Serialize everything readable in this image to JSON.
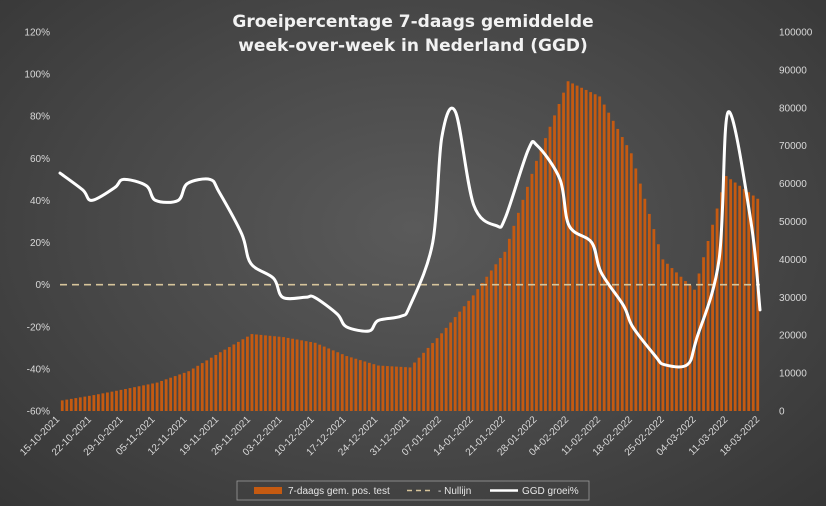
{
  "chart_data": {
    "type": "bar+line",
    "title_lines": [
      "Groeipercentage 7-daags gemiddelde",
      "week-over-week in Nederland (GGD)"
    ],
    "x_tick_labels": [
      "15-10-2021",
      "22-10-2021",
      "29-10-2021",
      "05-11-2021",
      "12-11-2021",
      "19-11-2021",
      "26-11-2021",
      "03-12-2021",
      "10-12-2021",
      "17-12-2021",
      "24-12-2021",
      "31-12-2021",
      "07-01-2022",
      "14-01-2022",
      "21-01-2022",
      "28-01-2022",
      "04-02-2022",
      "11-02-2022",
      "18-02-2022",
      "25-02-2022",
      "04-03-2022",
      "11-03-2022",
      "18-03-2022"
    ],
    "y_left": {
      "ylim": [
        -0.6,
        1.2
      ],
      "tick_labels": [
        "-60%",
        "-40%",
        "-20%",
        "0%",
        "20%",
        "40%",
        "60%",
        "80%",
        "100%",
        "120%"
      ]
    },
    "y_right": {
      "ylim": [
        0,
        100000
      ],
      "tick_labels": [
        "0",
        "10000",
        "20000",
        "30000",
        "40000",
        "50000",
        "60000",
        "70000",
        "80000",
        "90000",
        "100000"
      ]
    },
    "legend": {
      "position": "bottom",
      "entries": [
        "7-daags gem. pos. test",
        "- Nullijn",
        "GGD groei%"
      ]
    },
    "colors": {
      "bars": "#c55a11",
      "zero_line": "#d6c49a",
      "growth_line": "#ffffff"
    },
    "series": [
      {
        "name": "7-daags gem. pos. test",
        "axis": "right",
        "kind": "bar",
        "x": [
          "2021-10-15",
          "2021-10-22",
          "2021-10-29",
          "2021-11-05",
          "2021-11-12",
          "2021-11-19",
          "2021-11-26",
          "2021-12-03",
          "2021-12-10",
          "2021-12-17",
          "2021-12-24",
          "2021-12-31",
          "2022-01-07",
          "2022-01-14",
          "2022-01-21",
          "2022-01-28",
          "2022-02-04",
          "2022-02-11",
          "2022-02-18",
          "2022-02-25",
          "2022-03-04",
          "2022-03-11",
          "2022-03-18"
        ],
        "values": [
          2800,
          4200,
          5800,
          7500,
          10500,
          15500,
          20300,
          19500,
          18000,
          14500,
          12000,
          11500,
          20500,
          30500,
          42000,
          66000,
          87000,
          83000,
          68000,
          40000,
          32000,
          62000,
          56000
        ]
      },
      {
        "name": "GGD groei%",
        "axis": "left",
        "kind": "line",
        "x": [
          "2021-10-15",
          "2021-10-20",
          "2021-10-22",
          "2021-10-27",
          "2021-10-29",
          "2021-11-03",
          "2021-11-05",
          "2021-11-10",
          "2021-11-12",
          "2021-11-17",
          "2021-11-19",
          "2021-11-24",
          "2021-11-26",
          "2021-12-01",
          "2021-12-03",
          "2021-12-08",
          "2021-12-10",
          "2021-12-15",
          "2021-12-17",
          "2021-12-22",
          "2021-12-24",
          "2021-12-29",
          "2021-12-31",
          "2022-01-05",
          "2022-01-07",
          "2022-01-10",
          "2022-01-14",
          "2022-01-19",
          "2022-01-21",
          "2022-01-26",
          "2022-01-28",
          "2022-02-02",
          "2022-02-04",
          "2022-02-09",
          "2022-02-11",
          "2022-02-16",
          "2022-02-18",
          "2022-02-23",
          "2022-02-25",
          "2022-03-02",
          "2022-03-04",
          "2022-03-09",
          "2022-03-11",
          "2022-03-16",
          "2022-03-18"
        ],
        "values": [
          0.53,
          0.45,
          0.4,
          0.46,
          0.5,
          0.47,
          0.4,
          0.4,
          0.48,
          0.5,
          0.44,
          0.24,
          0.1,
          0.03,
          -0.06,
          -0.06,
          -0.06,
          -0.14,
          -0.2,
          -0.22,
          -0.17,
          -0.15,
          -0.1,
          0.2,
          0.7,
          0.82,
          0.38,
          0.28,
          0.32,
          0.64,
          0.66,
          0.5,
          0.28,
          0.2,
          0.06,
          -0.1,
          -0.2,
          -0.34,
          -0.38,
          -0.38,
          -0.26,
          0.12,
          0.82,
          0.3,
          -0.12
        ]
      }
    ]
  }
}
